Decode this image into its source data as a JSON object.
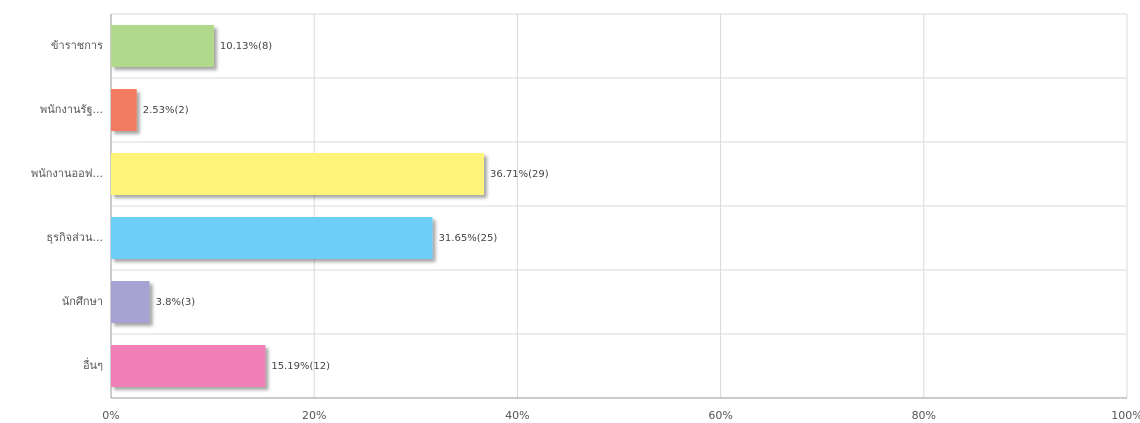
{
  "chart_data": {
    "type": "bar",
    "orientation": "horizontal",
    "categories": [
      "ข้าราชการ",
      "พนักงานรัฐ...",
      "พนักงานออฟ...",
      "ธุรกิจส่วน...",
      "นักศึกษา",
      "อื่นๆ"
    ],
    "values": [
      10.13,
      2.53,
      36.71,
      31.65,
      3.8,
      15.19
    ],
    "value_labels": [
      "10.13%(8)",
      "2.53%(2)",
      "36.71%(29)",
      "31.65%(25)",
      "3.8%(3)",
      "15.19%(12)"
    ],
    "colors": [
      "#b0d98c",
      "#f27b5e",
      "#fff47a",
      "#6dcff6",
      "#a6a2d2",
      "#f07fb6"
    ],
    "xlim": [
      0,
      100
    ],
    "xticks": [
      {
        "value": 0,
        "label": "0%"
      },
      {
        "value": 20,
        "label": "20%"
      },
      {
        "value": 40,
        "label": "40%"
      },
      {
        "value": 60,
        "label": "60%"
      },
      {
        "value": 80,
        "label": "80%"
      },
      {
        "value": 100,
        "label": "100%"
      }
    ],
    "grid": true
  }
}
